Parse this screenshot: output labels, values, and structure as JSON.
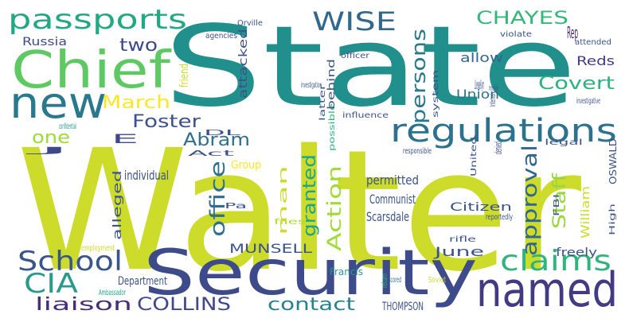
{
  "words": [
    {
      "text": "Walter",
      "color": "#cddc2b"
    },
    {
      "text": "State",
      "color": "#21908d"
    },
    {
      "text": "Security",
      "color": "#3d4b8a"
    },
    {
      "text": "named",
      "color": "#443a83"
    },
    {
      "text": "Chief",
      "color": "#5ec962"
    },
    {
      "text": "new",
      "color": "#2a788e"
    },
    {
      "text": "passports",
      "color": "#22a884"
    },
    {
      "text": "regulations",
      "color": "#2c728e"
    },
    {
      "text": "School",
      "color": "#39568c"
    },
    {
      "text": "claims",
      "color": "#2fb47c"
    },
    {
      "text": "CIA",
      "color": "#2a9a8a"
    },
    {
      "text": "WISE",
      "color": "#31688e"
    },
    {
      "text": "CHAYES",
      "color": "#35b779"
    },
    {
      "text": "Covert",
      "color": "#2db27d"
    },
    {
      "text": "March",
      "color": "#fde725"
    },
    {
      "text": "two",
      "color": "#3e4a89"
    },
    {
      "text": "Foster",
      "color": "#3b528b"
    },
    {
      "text": "Abram",
      "color": "#2e6f8e"
    },
    {
      "text": "one",
      "color": "#9fda3a"
    },
    {
      "text": "contact",
      "color": "#26828e"
    },
    {
      "text": "liaison",
      "color": "#472d7b"
    },
    {
      "text": "COLLINS",
      "color": "#3f4889"
    },
    {
      "text": "office",
      "color": "#2e6e8e"
    },
    {
      "text": "approval",
      "color": "#31678e"
    },
    {
      "text": "persons",
      "color": "#2a788e"
    },
    {
      "text": "Action",
      "color": "#a2da37"
    },
    {
      "text": "Staff",
      "color": "#95d840"
    },
    {
      "text": "granted",
      "color": "#20a486"
    },
    {
      "text": "allow",
      "color": "#31668e"
    },
    {
      "text": "Union",
      "color": "#2c728e"
    },
    {
      "text": "Reds",
      "color": "#443983"
    },
    {
      "text": "Rep",
      "color": "#482878"
    },
    {
      "text": "Llewellyn",
      "color": "#3b528b"
    },
    {
      "text": "Russia",
      "color": "#3e4989"
    },
    {
      "text": "Orville",
      "color": "#3b528b"
    },
    {
      "text": "agencies",
      "color": "#3b528b"
    },
    {
      "text": "violate",
      "color": "#3b528b"
    },
    {
      "text": "attended",
      "color": "#3b528b"
    },
    {
      "text": "officer",
      "color": "#3b528b"
    },
    {
      "text": "investigation",
      "color": "#3b528b"
    },
    {
      "text": "influence",
      "color": "#3b528b"
    },
    {
      "text": "investigative",
      "color": "#3b528b"
    },
    {
      "text": "legal",
      "color": "#3b528b"
    },
    {
      "text": "responsible",
      "color": "#3b528b"
    },
    {
      "text": "confidential",
      "color": "#21918c"
    },
    {
      "text": "J",
      "color": "#3e4989"
    },
    {
      "text": "E",
      "color": "#3e4989"
    },
    {
      "text": "DL",
      "color": "#3b528b"
    },
    {
      "text": "Act",
      "color": "#3b528b"
    },
    {
      "text": "Group",
      "color": "#fde725"
    },
    {
      "text": "individual",
      "color": "#3b528b"
    },
    {
      "text": "permitted",
      "color": "#3b528b"
    },
    {
      "text": "Communist",
      "color": "#3b528b"
    },
    {
      "text": "Scarsdale",
      "color": "#3b528b"
    },
    {
      "text": "Citizen",
      "color": "#3b528b"
    },
    {
      "text": "Pa",
      "color": "#3b528b"
    },
    {
      "text": "files",
      "color": "#addc30"
    },
    {
      "text": "reportedly",
      "color": "#3b528b"
    },
    {
      "text": "rifle",
      "color": "#3b528b"
    },
    {
      "text": "MUNSELL",
      "color": "#3b528b"
    },
    {
      "text": "employment",
      "color": "#c8e020"
    },
    {
      "text": "Department",
      "color": "#3b528b"
    },
    {
      "text": "Ambassador",
      "color": "#20a486"
    },
    {
      "text": "June",
      "color": "#3b528b"
    },
    {
      "text": "freely",
      "color": "#3b528b"
    },
    {
      "text": "Francis",
      "color": "#2a9a8a"
    },
    {
      "text": "scored",
      "color": "#2a788e"
    },
    {
      "text": "Soviet",
      "color": "#cddc2b"
    },
    {
      "text": "THOMPSON",
      "color": "#3b528b"
    },
    {
      "text": "friend",
      "color": "#cddc2b"
    },
    {
      "text": "attacked",
      "color": "#3b528b"
    },
    {
      "text": "system",
      "color": "#3b528b"
    },
    {
      "text": "latter",
      "color": "#3b528b"
    },
    {
      "text": "possible",
      "color": "#2fb47c"
    },
    {
      "text": "behind",
      "color": "#3b528b"
    },
    {
      "text": "immediately",
      "color": "#3b528b"
    },
    {
      "text": "Internal",
      "color": "#3b528b"
    },
    {
      "text": "OSWALD",
      "color": "#3b528b"
    },
    {
      "text": "William",
      "color": "#cddc2b"
    },
    {
      "text": "United",
      "color": "#3b528b"
    },
    {
      "text": "denied",
      "color": "#3b528b"
    },
    {
      "text": "alleged",
      "color": "#3b528b"
    },
    {
      "text": "man",
      "color": "#cddc2b"
    },
    {
      "text": "FBI",
      "color": "#3b528b"
    },
    {
      "text": "High",
      "color": "#3b528b"
    },
    {
      "text": "return",
      "color": "#2fb47c"
    }
  ]
}
